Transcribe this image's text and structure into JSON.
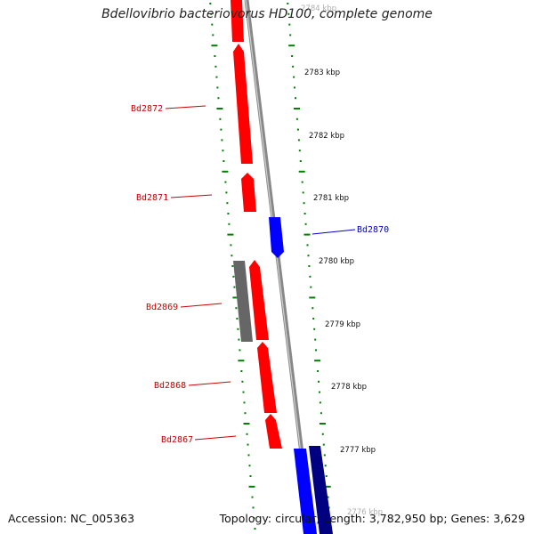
{
  "title": "Bdellovibrio bacteriovorus HD100, complete genome",
  "footer": {
    "accession": "Accession: NC_005363",
    "summary": "Topology: circular; Length: 3,782,950 bp; Genes: 3,629"
  },
  "colors": {
    "forward_gene": "#ff0000",
    "reverse_gene_light": "#0000ff",
    "reverse_gene_dark": "#000080",
    "other_feature": "#666666",
    "backbone": "#888888",
    "tick": "#008000",
    "label_forward": "#cc0000",
    "label_reverse": "#0000cc"
  },
  "scale_ticks_kbp": [
    "2784 kbp",
    "2783 kbp",
    "2782 kbp",
    "2781 kbp",
    "2780 kbp",
    "2779 kbp",
    "2778 kbp",
    "2777 kbp",
    "2776 kbp"
  ],
  "gene_labels": [
    {
      "id": "Bd2872",
      "strand": "forward"
    },
    {
      "id": "Bd2871",
      "strand": "forward"
    },
    {
      "id": "Bd2870",
      "strand": "reverse"
    },
    {
      "id": "Bd2869",
      "strand": "forward"
    },
    {
      "id": "Bd2868",
      "strand": "forward"
    },
    {
      "id": "Bd2867",
      "strand": "forward"
    }
  ]
}
